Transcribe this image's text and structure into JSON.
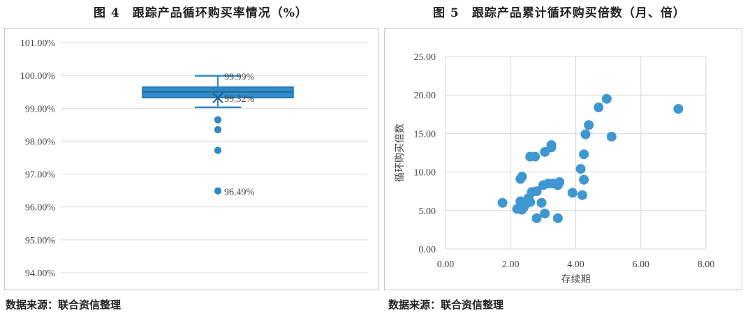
{
  "charts": [
    {
      "figure_title": "图 4　跟踪产品循环购买率情况（%）",
      "source": "数据来源：联合资信整理"
    },
    {
      "figure_title": "图 5　跟踪产品累计循环购买倍数（月、倍）",
      "source": "数据来源：联合资信整理"
    }
  ],
  "chart_data": [
    {
      "type": "boxplot",
      "title": "图 4　跟踪产品循环购买率情况（%）",
      "ylim": [
        94,
        101
      ],
      "y_ticks": [
        "101.00%",
        "100.00%",
        "99.00%",
        "98.00%",
        "97.00%",
        "96.00%",
        "95.00%",
        "94.00%"
      ],
      "y_tick_values": [
        101,
        100,
        99,
        98,
        97,
        96,
        95,
        94
      ],
      "box": {
        "whisker_high": 99.99,
        "q3": 99.65,
        "median": 99.5,
        "q1": 99.32,
        "mean": 99.32,
        "whisker_low": 99.03
      },
      "outliers": [
        98.65,
        98.35,
        97.72,
        96.49
      ],
      "annotations": [
        {
          "value": 99.99,
          "label": "99.99%"
        },
        {
          "value": 99.32,
          "label": "99.32%"
        },
        {
          "value": 96.49,
          "label": "96.49%"
        }
      ],
      "color": "#2e8cc9",
      "grid": true
    },
    {
      "type": "scatter",
      "title": "图 5　跟踪产品累计循环购买倍数（月、倍）",
      "xlabel": "存续期",
      "ylabel": "循环购买倍数",
      "xlim": [
        0,
        8
      ],
      "ylim": [
        0,
        25
      ],
      "x_ticks": [
        "0.00",
        "2.00",
        "4.00",
        "6.00",
        "8.00"
      ],
      "x_tick_values": [
        0,
        2,
        4,
        6,
        8
      ],
      "y_ticks": [
        "0.00",
        "5.00",
        "10.00",
        "15.00",
        "20.00",
        "25.00"
      ],
      "y_tick_values": [
        0,
        5,
        10,
        15,
        20,
        25
      ],
      "points": [
        [
          1.75,
          6.0
        ],
        [
          2.2,
          5.2
        ],
        [
          2.3,
          6.2
        ],
        [
          2.35,
          5.1
        ],
        [
          2.4,
          5.4
        ],
        [
          2.45,
          5.8
        ],
        [
          2.5,
          6.3
        ],
        [
          2.55,
          6.6
        ],
        [
          2.6,
          6.1
        ],
        [
          2.65,
          7.4
        ],
        [
          2.8,
          7.5
        ],
        [
          2.8,
          4.0
        ],
        [
          2.95,
          6.0
        ],
        [
          3.0,
          8.3
        ],
        [
          3.05,
          4.6
        ],
        [
          3.15,
          8.5
        ],
        [
          3.3,
          8.5
        ],
        [
          3.45,
          8.3
        ],
        [
          3.45,
          4.0
        ],
        [
          3.5,
          8.7
        ],
        [
          3.9,
          7.3
        ],
        [
          4.2,
          7.0
        ],
        [
          4.25,
          9.0
        ],
        [
          4.15,
          10.4
        ],
        [
          4.25,
          12.3
        ],
        [
          4.3,
          14.9
        ],
        [
          4.4,
          16.1
        ],
        [
          4.7,
          18.4
        ],
        [
          4.95,
          19.5
        ],
        [
          5.1,
          14.6
        ],
        [
          7.15,
          18.2
        ],
        [
          2.3,
          9.1
        ],
        [
          2.35,
          9.4
        ],
        [
          2.6,
          12.0
        ],
        [
          2.75,
          12.0
        ],
        [
          3.05,
          12.6
        ],
        [
          3.25,
          13.2
        ],
        [
          3.25,
          13.5
        ]
      ],
      "color": "#3e97d1",
      "grid": true
    }
  ]
}
